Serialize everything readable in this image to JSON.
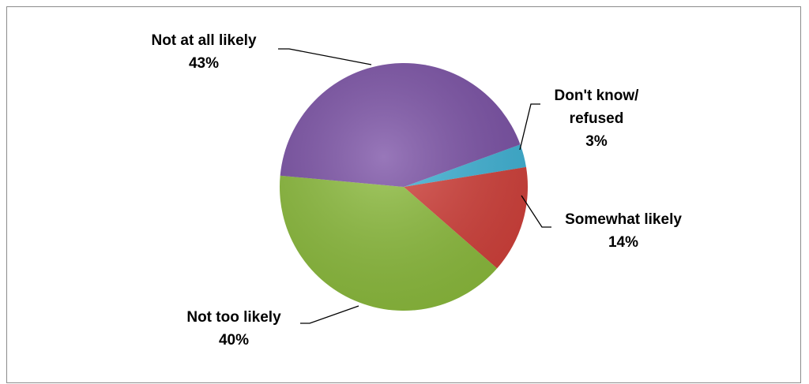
{
  "chart_data": {
    "type": "pie",
    "title": "",
    "slices": [
      {
        "label_lines": [
          "Don't know/",
          "refused"
        ],
        "value": 3,
        "value_label": "3%",
        "color": "#3fb3d6"
      },
      {
        "label_lines": [
          "Somewhat likely"
        ],
        "value": 14,
        "value_label": "14%",
        "color": "#d2403a"
      },
      {
        "label_lines": [
          "Not too likely"
        ],
        "value": 40,
        "value_label": "40%",
        "color": "#8cbc3c"
      },
      {
        "label_lines": [
          "Not at all likely"
        ],
        "value": 43,
        "value_label": "43%",
        "color": "#7b51a6"
      }
    ],
    "legend": "none",
    "start_angle_deg": -20,
    "direction": "clockwise"
  }
}
